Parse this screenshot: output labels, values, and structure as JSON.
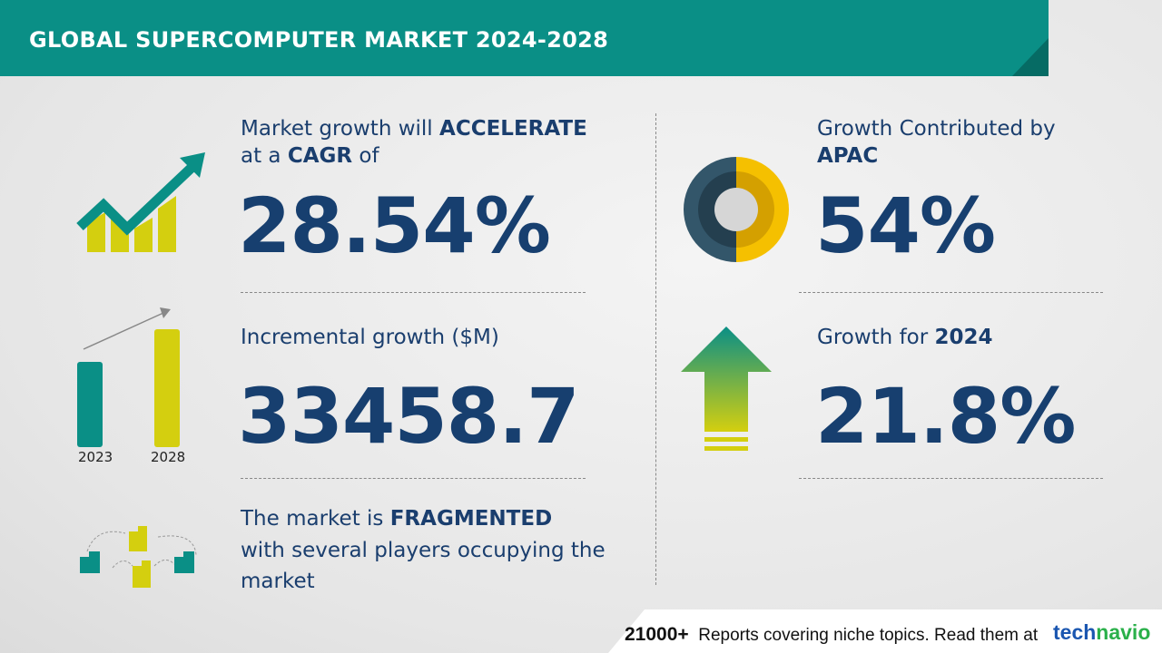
{
  "header": {
    "title": "GLOBAL SUPERCOMPUTER MARKET 2024-2028"
  },
  "cagr": {
    "line1_pre": "Market growth will ",
    "line1_bold": "ACCELERATE",
    "line2_pre": "at a ",
    "line2_bold": "CAGR",
    "line2_post": " of",
    "value": "28.54%"
  },
  "incremental": {
    "label": "Incremental growth ($M)",
    "value": "33458.7",
    "years": [
      "2023",
      "2028"
    ]
  },
  "vendor": {
    "line1_pre": "The market is ",
    "line1_bold": "FRAGMENTED",
    "line2": "with several players occupying the",
    "line3": "market"
  },
  "region": {
    "line1": "Growth Contributed by",
    "line2_bold": "APAC",
    "value": "54%",
    "share_percent": 54
  },
  "yoy": {
    "label_pre": "Growth for ",
    "label_bold": "2024",
    "value": "21.8%"
  },
  "footer": {
    "count": "21000+",
    "text": "Reports covering niche topics. Read them at",
    "logo_part1": "tech",
    "logo_part2": "navio"
  },
  "colors": {
    "teal": "#0a8f86",
    "yellow": "#d4cf0f",
    "navy": "#173f6f",
    "slate": "#33566a",
    "gold": "#f5c000"
  }
}
